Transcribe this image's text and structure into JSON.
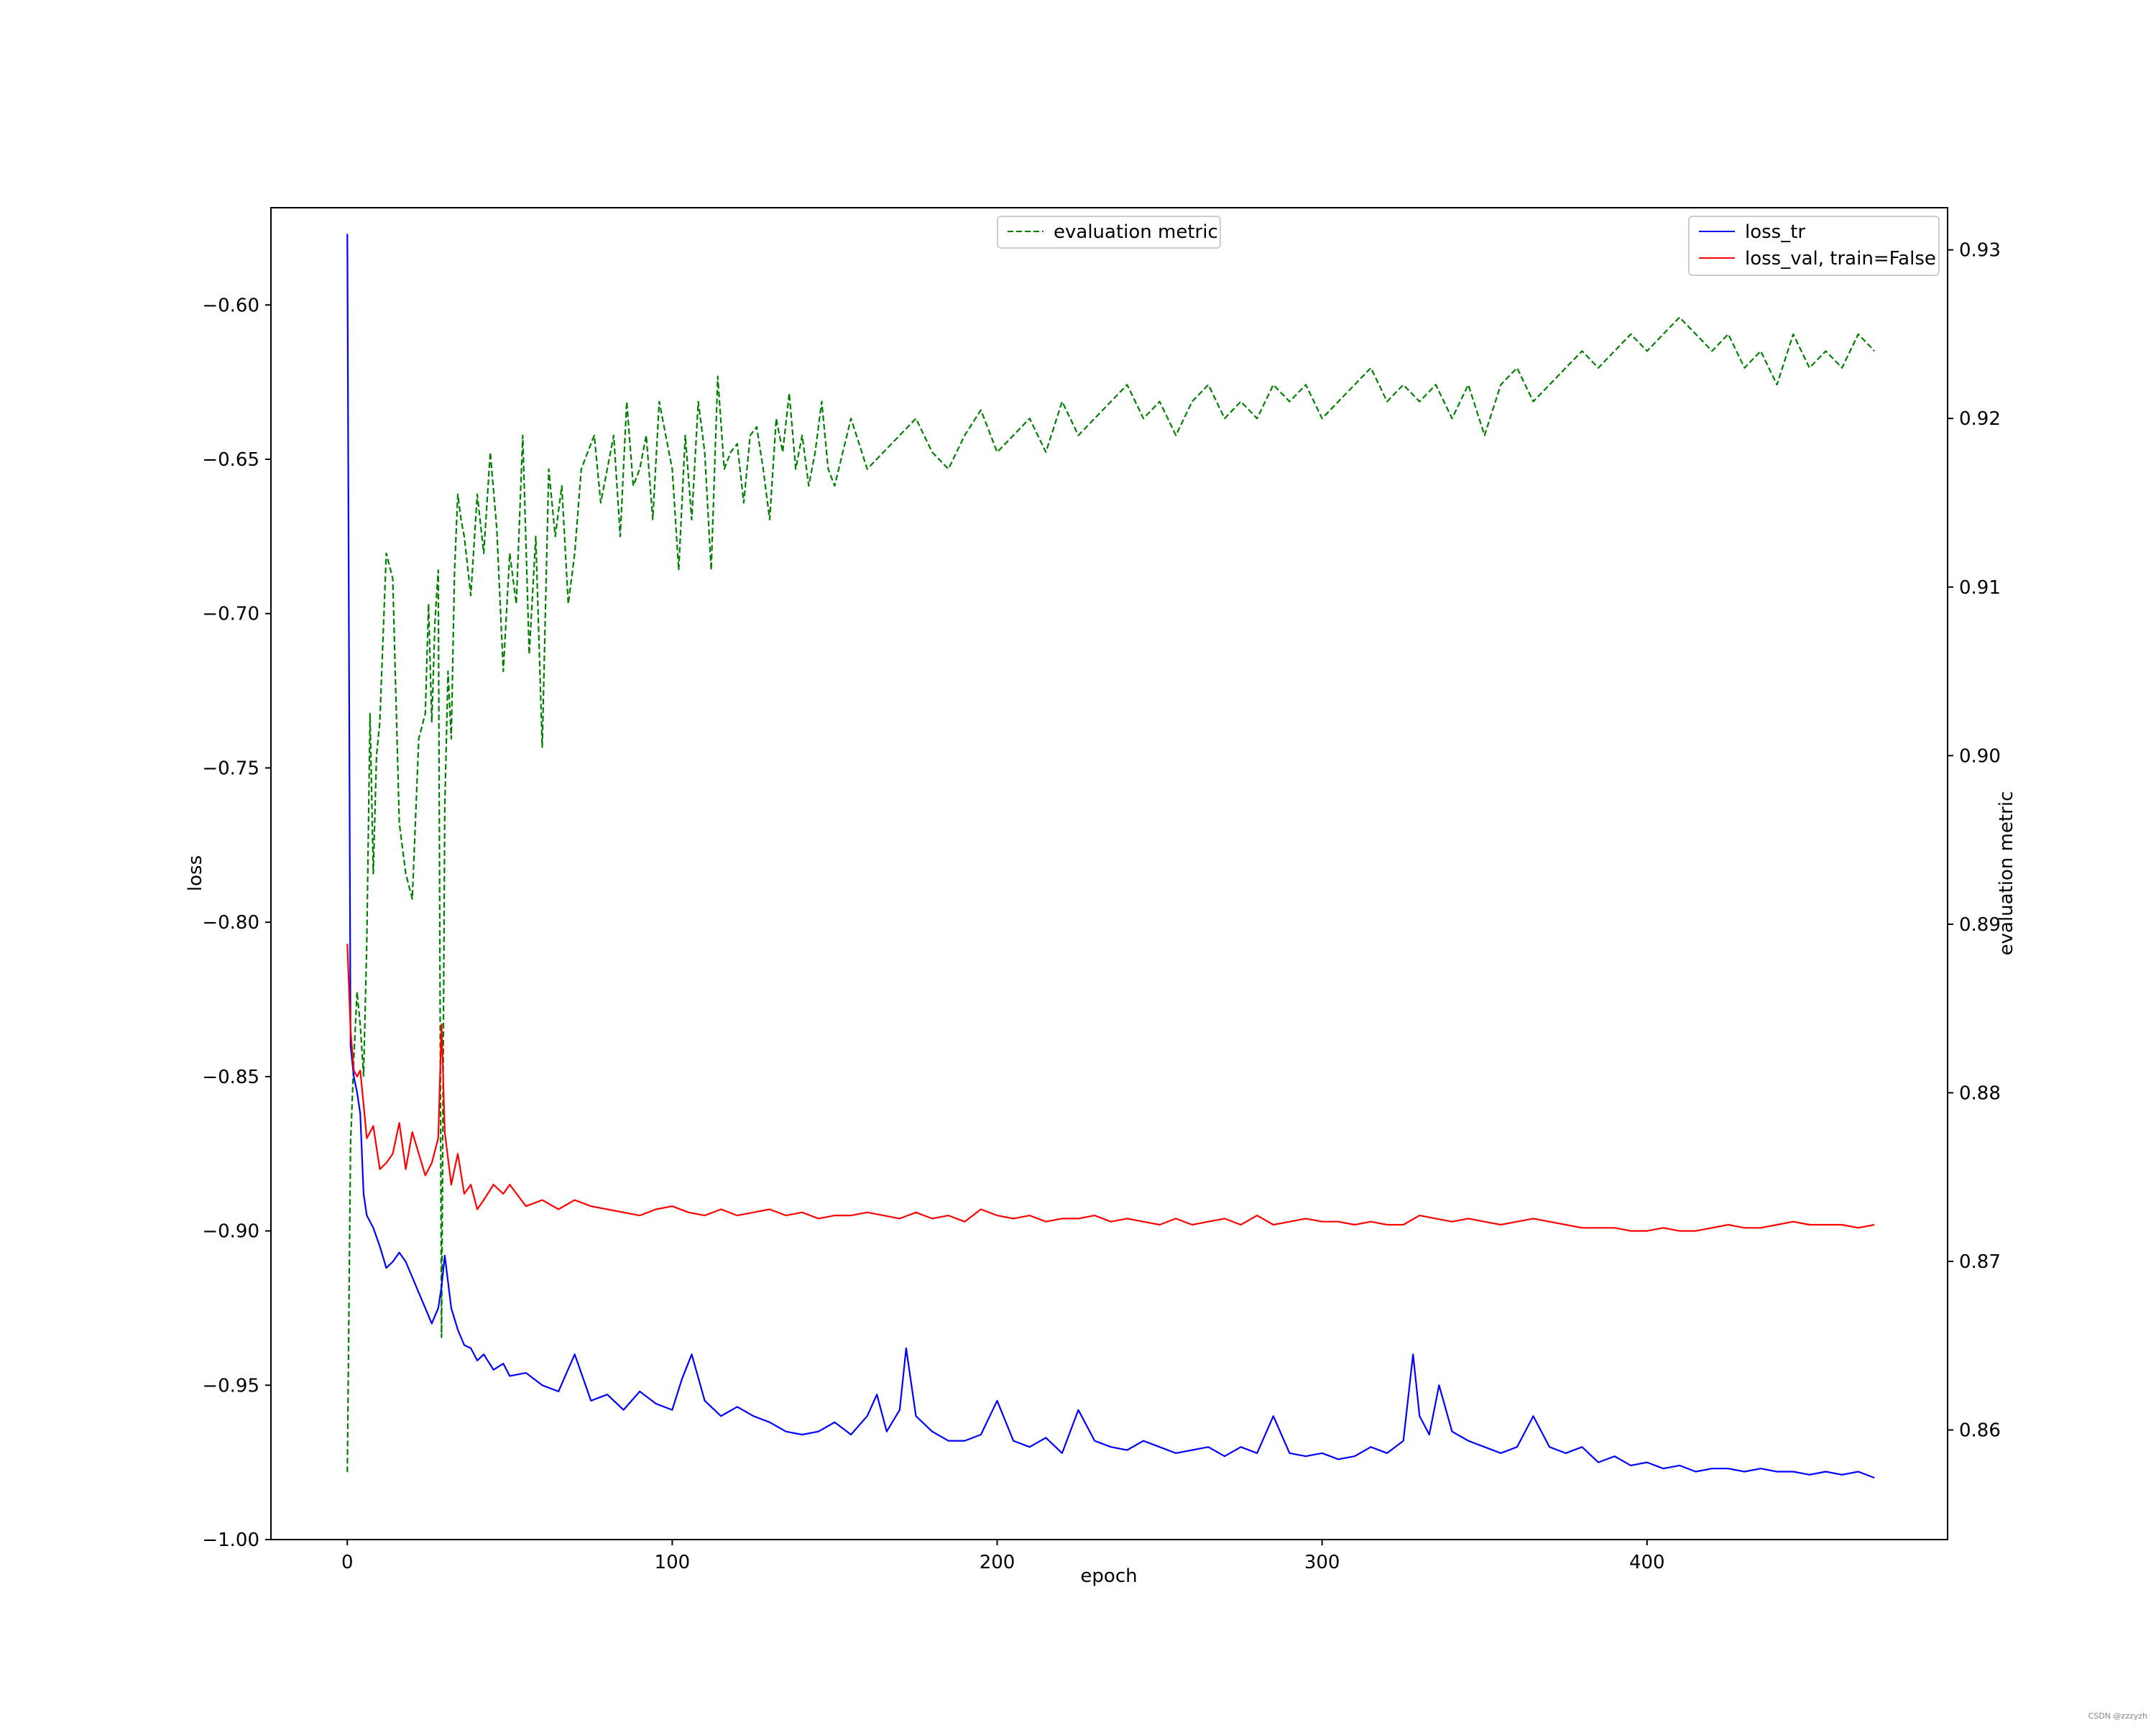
{
  "chart_data": {
    "type": "line",
    "xlabel": "epoch",
    "ylabel": "loss",
    "ylabel_right": "evaluation metric",
    "xlim": [
      -23.5,
      492.5
    ],
    "ylim": [
      -1.0,
      -0.5685
    ],
    "ylim_right": [
      0.8535,
      0.9325
    ],
    "xticks": [
      0,
      100,
      200,
      300,
      400
    ],
    "yticks": [
      -1.0,
      -0.95,
      -0.9,
      -0.85,
      -0.8,
      -0.75,
      -0.7,
      -0.65,
      -0.6
    ],
    "yticks_right": [
      0.86,
      0.87,
      0.88,
      0.89,
      0.9,
      0.91,
      0.92,
      0.93
    ],
    "grid": false,
    "legend_left": {
      "placement": "upper-center",
      "entries": [
        "evaluation metric"
      ]
    },
    "legend_right": {
      "placement": "upper-right",
      "entries": [
        "loss_tr",
        "loss_val, train=False"
      ]
    },
    "series": [
      {
        "name": "loss_tr",
        "axis": "left",
        "color": "#0000ff",
        "style": "solid",
        "x": [
          0,
          1,
          2,
          3,
          4,
          5,
          6,
          8,
          10,
          12,
          14,
          16,
          18,
          20,
          22,
          24,
          26,
          28,
          29,
          30,
          32,
          34,
          36,
          38,
          40,
          42,
          45,
          48,
          50,
          55,
          60,
          65,
          70,
          75,
          80,
          85,
          90,
          95,
          100,
          103,
          106,
          110,
          115,
          120,
          125,
          130,
          135,
          140,
          145,
          150,
          155,
          160,
          163,
          166,
          170,
          172,
          175,
          180,
          185,
          190,
          195,
          200,
          205,
          210,
          215,
          220,
          225,
          230,
          235,
          240,
          245,
          250,
          255,
          260,
          265,
          270,
          275,
          280,
          285,
          290,
          295,
          300,
          305,
          310,
          315,
          320,
          325,
          328,
          330,
          333,
          336,
          340,
          345,
          350,
          355,
          360,
          365,
          370,
          375,
          380,
          385,
          390,
          395,
          400,
          405,
          410,
          415,
          420,
          425,
          430,
          435,
          440,
          445,
          450,
          455,
          460,
          465,
          470
        ],
        "y": [
          -0.577,
          -0.84,
          -0.85,
          -0.855,
          -0.862,
          -0.888,
          -0.895,
          -0.899,
          -0.905,
          -0.912,
          -0.91,
          -0.907,
          -0.91,
          -0.915,
          -0.92,
          -0.925,
          -0.93,
          -0.925,
          -0.918,
          -0.908,
          -0.925,
          -0.932,
          -0.937,
          -0.938,
          -0.942,
          -0.94,
          -0.945,
          -0.943,
          -0.947,
          -0.946,
          -0.95,
          -0.952,
          -0.94,
          -0.955,
          -0.953,
          -0.958,
          -0.952,
          -0.956,
          -0.958,
          -0.948,
          -0.94,
          -0.955,
          -0.96,
          -0.957,
          -0.96,
          -0.962,
          -0.965,
          -0.966,
          -0.965,
          -0.962,
          -0.966,
          -0.96,
          -0.953,
          -0.965,
          -0.958,
          -0.938,
          -0.96,
          -0.965,
          -0.968,
          -0.968,
          -0.966,
          -0.955,
          -0.968,
          -0.97,
          -0.967,
          -0.972,
          -0.958,
          -0.968,
          -0.97,
          -0.971,
          -0.968,
          -0.97,
          -0.972,
          -0.971,
          -0.97,
          -0.973,
          -0.97,
          -0.972,
          -0.96,
          -0.972,
          -0.973,
          -0.972,
          -0.974,
          -0.973,
          -0.97,
          -0.972,
          -0.968,
          -0.94,
          -0.96,
          -0.966,
          -0.95,
          -0.965,
          -0.968,
          -0.97,
          -0.972,
          -0.97,
          -0.96,
          -0.97,
          -0.972,
          -0.97,
          -0.975,
          -0.973,
          -0.976,
          -0.975,
          -0.977,
          -0.976,
          -0.978,
          -0.977,
          -0.977,
          -0.978,
          -0.977,
          -0.978,
          -0.978,
          -0.979,
          -0.978,
          -0.979,
          -0.978,
          -0.98
        ]
      },
      {
        "name": "loss_val, train=False",
        "axis": "left",
        "color": "#ff0000",
        "style": "solid",
        "x": [
          0,
          1,
          2,
          3,
          4,
          6,
          8,
          10,
          12,
          14,
          16,
          18,
          20,
          22,
          24,
          26,
          28,
          29,
          30,
          32,
          34,
          36,
          38,
          40,
          42,
          45,
          48,
          50,
          55,
          60,
          65,
          70,
          75,
          80,
          85,
          90,
          95,
          100,
          105,
          110,
          115,
          120,
          125,
          130,
          135,
          140,
          145,
          150,
          155,
          160,
          165,
          170,
          175,
          180,
          185,
          190,
          195,
          200,
          205,
          210,
          215,
          220,
          225,
          230,
          235,
          240,
          245,
          250,
          255,
          260,
          265,
          270,
          275,
          280,
          285,
          290,
          295,
          300,
          305,
          310,
          315,
          320,
          325,
          330,
          335,
          340,
          345,
          350,
          355,
          360,
          365,
          370,
          375,
          380,
          385,
          390,
          395,
          400,
          405,
          410,
          415,
          420,
          425,
          430,
          435,
          440,
          445,
          450,
          455,
          460,
          465,
          470
        ],
        "y": [
          -0.807,
          -0.835,
          -0.848,
          -0.85,
          -0.848,
          -0.87,
          -0.866,
          -0.88,
          -0.878,
          -0.875,
          -0.865,
          -0.88,
          -0.868,
          -0.875,
          -0.882,
          -0.878,
          -0.87,
          -0.833,
          -0.868,
          -0.885,
          -0.875,
          -0.888,
          -0.885,
          -0.893,
          -0.89,
          -0.885,
          -0.888,
          -0.885,
          -0.892,
          -0.89,
          -0.893,
          -0.89,
          -0.892,
          -0.893,
          -0.894,
          -0.895,
          -0.893,
          -0.892,
          -0.894,
          -0.895,
          -0.893,
          -0.895,
          -0.894,
          -0.893,
          -0.895,
          -0.894,
          -0.896,
          -0.895,
          -0.895,
          -0.894,
          -0.895,
          -0.896,
          -0.894,
          -0.896,
          -0.895,
          -0.897,
          -0.893,
          -0.895,
          -0.896,
          -0.895,
          -0.897,
          -0.896,
          -0.896,
          -0.895,
          -0.897,
          -0.896,
          -0.897,
          -0.898,
          -0.896,
          -0.898,
          -0.897,
          -0.896,
          -0.898,
          -0.895,
          -0.898,
          -0.897,
          -0.896,
          -0.897,
          -0.897,
          -0.898,
          -0.897,
          -0.898,
          -0.898,
          -0.895,
          -0.896,
          -0.897,
          -0.896,
          -0.897,
          -0.898,
          -0.897,
          -0.896,
          -0.897,
          -0.898,
          -0.899,
          -0.899,
          -0.899,
          -0.9,
          -0.9,
          -0.899,
          -0.9,
          -0.9,
          -0.899,
          -0.898,
          -0.899,
          -0.899,
          -0.898,
          -0.897,
          -0.898,
          -0.898,
          -0.898,
          -0.899,
          -0.898
        ]
      },
      {
        "name": "evaluation metric",
        "axis": "right",
        "color": "#008000",
        "style": "dashed",
        "x": [
          0,
          1,
          2,
          3,
          4,
          5,
          6,
          7,
          8,
          9,
          10,
          12,
          14,
          16,
          18,
          20,
          22,
          24,
          25,
          26,
          27,
          28,
          29,
          30,
          31,
          32,
          33,
          34,
          35,
          36,
          38,
          40,
          42,
          44,
          46,
          48,
          50,
          52,
          54,
          56,
          58,
          60,
          62,
          64,
          66,
          68,
          70,
          72,
          74,
          76,
          78,
          80,
          82,
          84,
          86,
          88,
          90,
          92,
          94,
          96,
          98,
          100,
          102,
          104,
          106,
          108,
          110,
          112,
          114,
          116,
          118,
          120,
          122,
          124,
          126,
          128,
          130,
          132,
          134,
          136,
          138,
          140,
          142,
          144,
          146,
          148,
          150,
          155,
          160,
          165,
          170,
          175,
          180,
          185,
          190,
          195,
          200,
          205,
          210,
          215,
          220,
          225,
          230,
          235,
          240,
          245,
          250,
          255,
          260,
          265,
          270,
          275,
          280,
          285,
          290,
          295,
          300,
          305,
          310,
          315,
          320,
          325,
          330,
          335,
          340,
          345,
          350,
          355,
          360,
          365,
          370,
          375,
          380,
          385,
          390,
          395,
          400,
          405,
          410,
          415,
          420,
          425,
          430,
          435,
          440,
          445,
          450,
          455,
          460,
          465,
          470
        ],
        "y": [
          0.8575,
          0.877,
          0.882,
          0.886,
          0.884,
          0.881,
          0.889,
          0.9025,
          0.893,
          0.9,
          0.902,
          0.912,
          0.9105,
          0.896,
          0.893,
          0.8915,
          0.901,
          0.9025,
          0.909,
          0.902,
          0.908,
          0.911,
          0.8655,
          0.897,
          0.905,
          0.901,
          0.911,
          0.9155,
          0.914,
          0.913,
          0.9095,
          0.9155,
          0.912,
          0.918,
          0.9135,
          0.905,
          0.912,
          0.909,
          0.919,
          0.906,
          0.913,
          0.9005,
          0.917,
          0.913,
          0.916,
          0.909,
          0.912,
          0.917,
          0.918,
          0.919,
          0.915,
          0.917,
          0.919,
          0.913,
          0.921,
          0.916,
          0.917,
          0.919,
          0.914,
          0.921,
          0.919,
          0.917,
          0.911,
          0.919,
          0.914,
          0.921,
          0.918,
          0.911,
          0.9225,
          0.917,
          0.918,
          0.9185,
          0.915,
          0.919,
          0.9195,
          0.917,
          0.914,
          0.92,
          0.918,
          0.9215,
          0.917,
          0.919,
          0.916,
          0.918,
          0.921,
          0.917,
          0.916,
          0.92,
          0.917,
          0.918,
          0.919,
          0.92,
          0.918,
          0.917,
          0.919,
          0.9205,
          0.918,
          0.919,
          0.92,
          0.918,
          0.921,
          0.919,
          0.92,
          0.921,
          0.922,
          0.92,
          0.921,
          0.919,
          0.921,
          0.922,
          0.92,
          0.921,
          0.92,
          0.922,
          0.921,
          0.922,
          0.92,
          0.921,
          0.922,
          0.923,
          0.921,
          0.922,
          0.921,
          0.922,
          0.92,
          0.922,
          0.919,
          0.922,
          0.923,
          0.921,
          0.922,
          0.923,
          0.924,
          0.923,
          0.924,
          0.925,
          0.924,
          0.925,
          0.926,
          0.925,
          0.924,
          0.925,
          0.923,
          0.924,
          0.922,
          0.925,
          0.923,
          0.924,
          0.923,
          0.925,
          0.924
        ]
      }
    ]
  },
  "watermark": "CSDN @zzzyzh"
}
